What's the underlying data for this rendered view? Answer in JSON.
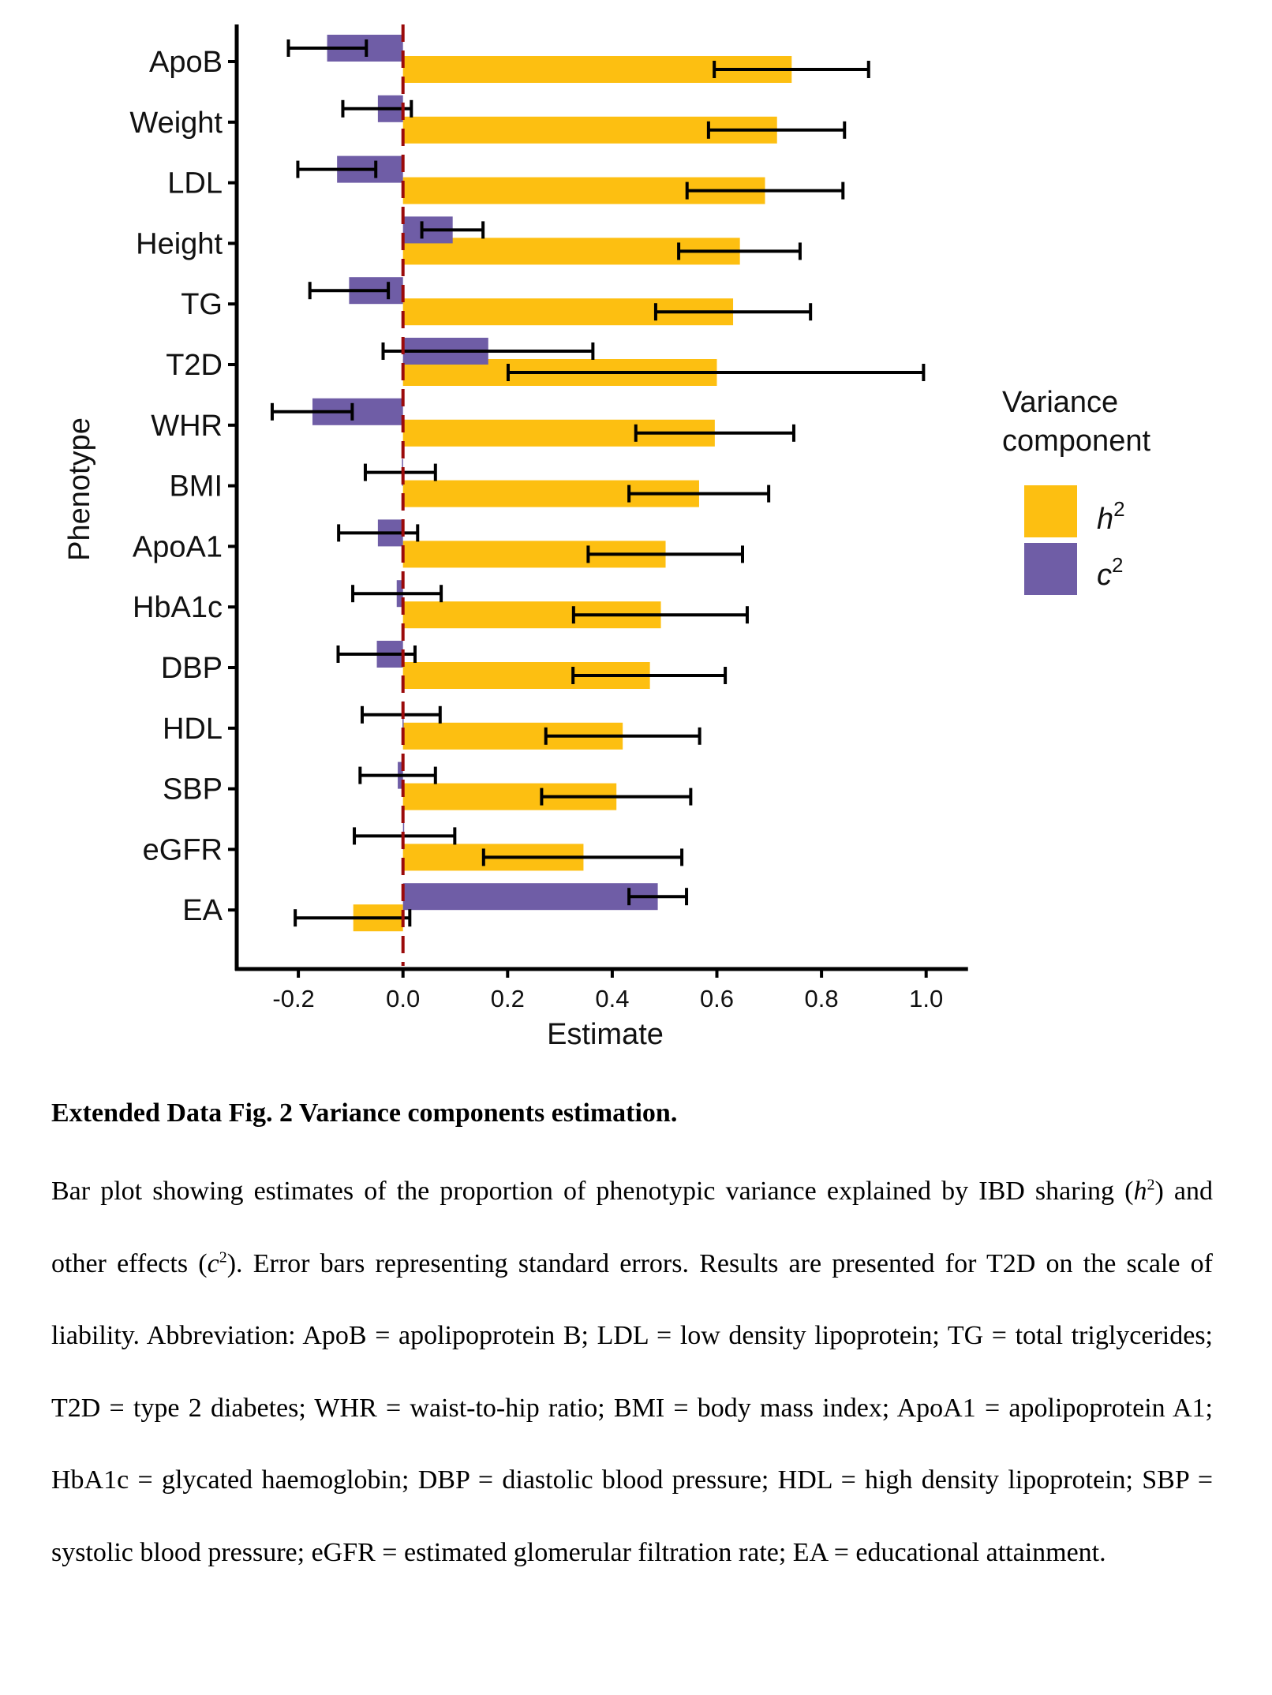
{
  "chart_data": {
    "type": "bar",
    "orientation": "horizontal",
    "title": "",
    "xlabel": "Estimate",
    "ylabel": "Phenotype",
    "xlim": [
      -0.32,
      1.08
    ],
    "xticks": [
      -0.2,
      0.0,
      0.2,
      0.4,
      0.6,
      0.8,
      1.0
    ],
    "xtick_labels": [
      "-0.2",
      "0.0",
      "0.2",
      "0.4",
      "0.6",
      "0.8",
      "1.0"
    ],
    "grid": false,
    "reference_line": {
      "x": 0.0,
      "style": "dashed",
      "color": "#9B0A0A"
    },
    "categories": [
      "ApoB",
      "Weight",
      "LDL",
      "Height",
      "TG",
      "T2D",
      "WHR",
      "BMI",
      "ApoA1",
      "HbA1c",
      "DBP",
      "HDL",
      "SBP",
      "eGFR",
      "EA"
    ],
    "legend": {
      "title_lines": [
        "Variance",
        "component"
      ],
      "placement": "right",
      "entries": [
        {
          "key": "h2",
          "base": "h",
          "sup": "2"
        },
        {
          "key": "c2",
          "base": "c",
          "sup": "2"
        }
      ]
    },
    "series": [
      {
        "name": "h2",
        "color": "#FDBF11",
        "values": [
          0.743,
          0.715,
          0.692,
          0.644,
          0.631,
          0.6,
          0.596,
          0.566,
          0.502,
          0.493,
          0.472,
          0.42,
          0.408,
          0.345,
          -0.095
        ],
        "err_low": [
          0.595,
          0.584,
          0.543,
          0.527,
          0.483,
          0.201,
          0.445,
          0.432,
          0.354,
          0.326,
          0.325,
          0.273,
          0.265,
          0.154,
          -0.206
        ],
        "err_high": [
          0.89,
          0.844,
          0.841,
          0.759,
          0.779,
          0.995,
          0.747,
          0.699,
          0.649,
          0.658,
          0.616,
          0.567,
          0.55,
          0.533,
          0.013
        ]
      },
      {
        "name": "c2",
        "color": "#6F5DA6",
        "values": [
          -0.145,
          -0.048,
          -0.126,
          0.095,
          -0.103,
          0.163,
          -0.173,
          -0.002,
          -0.048,
          -0.012,
          -0.05,
          -0.001,
          -0.01,
          0.002,
          0.487
        ],
        "err_low": [
          -0.219,
          -0.115,
          -0.201,
          0.036,
          -0.178,
          -0.038,
          -0.25,
          -0.072,
          -0.123,
          -0.096,
          -0.124,
          -0.078,
          -0.082,
          -0.093,
          0.432
        ],
        "err_high": [
          -0.07,
          0.016,
          -0.052,
          0.153,
          -0.028,
          0.363,
          -0.097,
          0.062,
          0.028,
          0.073,
          0.023,
          0.071,
          0.062,
          0.099,
          0.542
        ]
      }
    ]
  },
  "caption": {
    "title": "Extended Data Fig. 2 Variance components estimation.",
    "body_parts": {
      "p1": "Bar plot showing estimates of the proportion of phenotypic variance explained by IBD sharing (",
      "h": "h",
      "h_sup": "2",
      "p2": ") and other effects (",
      "c": "c",
      "c_sup": "2",
      "p3": "). Error bars representing standard errors. Results are presented for T2D on the scale of liability. Abbreviation: ApoB = apolipoprotein B; LDL = low density lipoprotein; TG = total triglycerides; T2D = type 2 diabetes; WHR = waist-to-hip ratio; BMI = body mass index; ApoA1 = apolipoprotein A1; HbA1c = glycated haemoglobin; DBP = diastolic blood pressure; HDL = high density lipoprotein; SBP = systolic blood pressure; eGFR = estimated glomerular filtration rate; EA = educational attainment."
    }
  }
}
